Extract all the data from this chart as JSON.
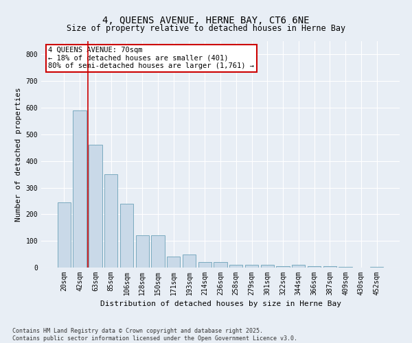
{
  "title": "4, QUEENS AVENUE, HERNE BAY, CT6 6NE",
  "subtitle": "Size of property relative to detached houses in Herne Bay",
  "xlabel": "Distribution of detached houses by size in Herne Bay",
  "ylabel": "Number of detached properties",
  "categories": [
    "20sqm",
    "42sqm",
    "63sqm",
    "85sqm",
    "106sqm",
    "128sqm",
    "150sqm",
    "171sqm",
    "193sqm",
    "214sqm",
    "236sqm",
    "258sqm",
    "279sqm",
    "301sqm",
    "322sqm",
    "344sqm",
    "366sqm",
    "387sqm",
    "409sqm",
    "430sqm",
    "452sqm"
  ],
  "values": [
    245,
    590,
    460,
    350,
    240,
    120,
    120,
    40,
    50,
    20,
    20,
    10,
    10,
    10,
    5,
    10,
    5,
    5,
    3,
    1,
    2
  ],
  "bar_color": "#c9d9e8",
  "bar_edge_color": "#7aaabf",
  "vline_x_index": 1.5,
  "vline_color": "#cc0000",
  "annotation_text": "4 QUEENS AVENUE: 70sqm\n← 18% of detached houses are smaller (401)\n80% of semi-detached houses are larger (1,761) →",
  "annotation_box_facecolor": "#ffffff",
  "annotation_box_edgecolor": "#cc0000",
  "ylim": [
    0,
    850
  ],
  "yticks": [
    0,
    100,
    200,
    300,
    400,
    500,
    600,
    700,
    800
  ],
  "footer_line1": "Contains HM Land Registry data © Crown copyright and database right 2025.",
  "footer_line2": "Contains public sector information licensed under the Open Government Licence v3.0.",
  "bg_color": "#e8eef5",
  "plot_bg_color": "#e8eef5",
  "grid_color": "#ffffff",
  "title_fontsize": 10,
  "tick_fontsize": 7,
  "ylabel_fontsize": 8,
  "xlabel_fontsize": 8,
  "annotation_fontsize": 7.5,
  "footer_fontsize": 6
}
